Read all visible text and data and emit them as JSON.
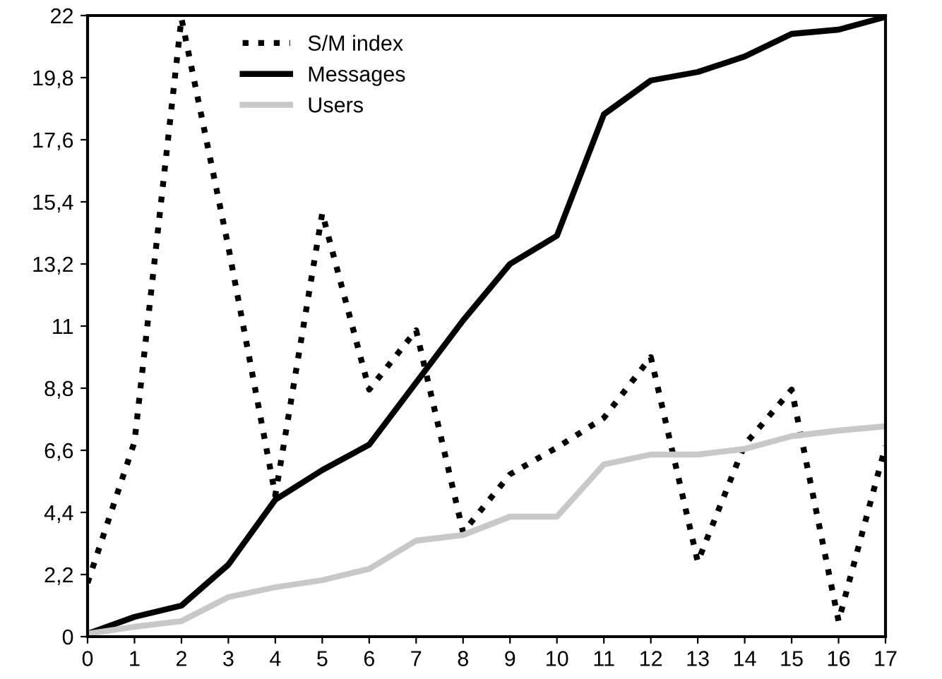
{
  "chart_data": {
    "type": "line",
    "x": [
      0,
      1,
      2,
      3,
      4,
      5,
      6,
      7,
      8,
      9,
      10,
      11,
      12,
      13,
      14,
      15,
      16,
      17
    ],
    "series": [
      {
        "name": "S/M index",
        "color": "#000000",
        "line_style": "dotted",
        "values": [
          1.9,
          6.9,
          21.9,
          13.8,
          5.0,
          15.0,
          8.75,
          10.85,
          3.7,
          5.75,
          6.7,
          7.75,
          9.9,
          2.65,
          6.8,
          8.75,
          0.55,
          6.75
        ]
      },
      {
        "name": "Messages",
        "color": "#000000",
        "line_style": "solid",
        "values": [
          0.1,
          0.7,
          1.1,
          2.55,
          4.85,
          5.9,
          6.8,
          9.0,
          11.2,
          13.2,
          14.2,
          18.5,
          19.7,
          20.0,
          20.55,
          21.35,
          21.5,
          21.95
        ]
      },
      {
        "name": "Users",
        "color": "#c8c8c8",
        "line_style": "solid",
        "values": [
          0.1,
          0.35,
          0.55,
          1.4,
          1.75,
          2.0,
          2.4,
          3.4,
          3.6,
          4.25,
          4.25,
          6.1,
          6.45,
          6.45,
          6.65,
          7.1,
          7.3,
          7.45
        ]
      }
    ],
    "xlim": [
      0,
      17
    ],
    "ylim": [
      0,
      22
    ],
    "xticks": [
      0,
      1,
      2,
      3,
      4,
      5,
      6,
      7,
      8,
      9,
      10,
      11,
      12,
      13,
      14,
      15,
      16,
      17
    ],
    "yticks": [
      0,
      {
        "value": 2.2,
        "label": "2,2"
      },
      {
        "value": 4.4,
        "label": "4,4"
      },
      {
        "value": 6.6,
        "label": "6,6"
      },
      {
        "value": 8.8,
        "label": "8,8"
      },
      11,
      {
        "value": 13.2,
        "label": "13,2"
      },
      {
        "value": 15.4,
        "label": "15,4"
      },
      {
        "value": 17.6,
        "label": "17,6"
      },
      {
        "value": 19.8,
        "label": "19,8"
      },
      22
    ],
    "grid": false,
    "legend": "top left",
    "marker": "none"
  }
}
